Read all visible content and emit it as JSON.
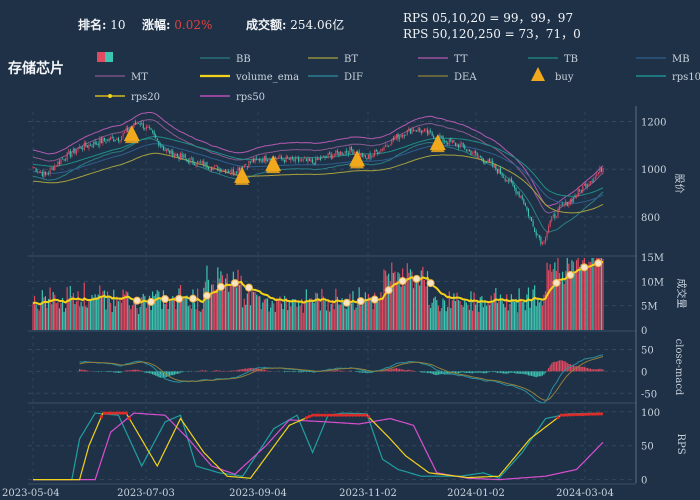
{
  "header": {
    "rank_label": "排名:",
    "rank_value": "10",
    "change_label": "涨幅:",
    "change_value": "0.02%",
    "turnover_label": "成交额:",
    "turnover_value": "254.06亿",
    "rps_line1": "RPS 05,10,20 = 99，99，97",
    "rps_line2": "RPS 50,120,250 = 73，71，0"
  },
  "title": "存储芯片",
  "legend": [
    {
      "label": "",
      "kind": "candle"
    },
    {
      "label": "BB",
      "kind": "line",
      "color": "#2a7e82"
    },
    {
      "label": "BT",
      "kind": "line",
      "color": "#a8a23c"
    },
    {
      "label": "TT",
      "kind": "line",
      "color": "#b35ab0"
    },
    {
      "label": "TB",
      "kind": "line",
      "color": "#1f8f86"
    },
    {
      "label": "MB",
      "kind": "line",
      "color": "#2f5f8f"
    },
    {
      "label": "MT",
      "kind": "line",
      "color": "#8a5a8f"
    },
    {
      "label": "volume_ema",
      "kind": "line",
      "color": "#f3d21b"
    },
    {
      "label": "DIF",
      "kind": "line",
      "color": "#2a8fa0"
    },
    {
      "label": "DEA",
      "kind": "line",
      "color": "#8f7f3a"
    },
    {
      "label": "buy",
      "kind": "triangle",
      "color": "#f0a91c"
    },
    {
      "label": "rps10",
      "kind": "line",
      "color": "#1fa0a0"
    },
    {
      "label": "rps20",
      "kind": "dotline",
      "color": "#f3d21b"
    },
    {
      "label": "rps50",
      "kind": "line",
      "color": "#d94fd0"
    }
  ],
  "chart_data": [
    {
      "type": "candlestick",
      "ylabel": "股价",
      "ylim": [
        640,
        1240
      ],
      "yticks": [
        800,
        1000,
        1200
      ],
      "x_dates": [
        "2023-05-04",
        "2023-07-03",
        "2023-09-04",
        "2023-11-02",
        "2024-01-02",
        "2024-03-04"
      ],
      "close_path": [
        [
          0,
          1010
        ],
        [
          8,
          975
        ],
        [
          18,
          1040
        ],
        [
          30,
          1090
        ],
        [
          45,
          1120
        ],
        [
          55,
          1130
        ],
        [
          68,
          1200
        ],
        [
          75,
          1160
        ],
        [
          85,
          1080
        ],
        [
          100,
          1040
        ],
        [
          115,
          1010
        ],
        [
          128,
          990
        ],
        [
          140,
          1030
        ],
        [
          152,
          1050
        ],
        [
          165,
          1040
        ],
        [
          180,
          1030
        ],
        [
          192,
          1060
        ],
        [
          205,
          1080
        ],
        [
          215,
          1045
        ],
        [
          225,
          1090
        ],
        [
          235,
          1140
        ],
        [
          245,
          1170
        ],
        [
          255,
          1150
        ],
        [
          265,
          1120
        ],
        [
          275,
          1100
        ],
        [
          285,
          1060
        ],
        [
          295,
          1020
        ],
        [
          305,
          960
        ],
        [
          315,
          880
        ],
        [
          322,
          760
        ],
        [
          328,
          690
        ],
        [
          333,
          780
        ],
        [
          340,
          840
        ],
        [
          348,
          880
        ],
        [
          356,
          940
        ],
        [
          362,
          970
        ],
        [
          367,
          1010
        ]
      ],
      "buy_markers_idx": [
        25,
        96,
        116,
        170,
        222
      ],
      "bands": [
        "BB",
        "BT",
        "TT",
        "TB",
        "MB",
        "MT"
      ]
    },
    {
      "type": "bar",
      "ylabel": "成交量",
      "ylim": [
        0,
        15000000
      ],
      "yticks": [
        "0",
        "5M",
        "10M",
        "15M"
      ],
      "volume_ema_series": "volume_ema"
    },
    {
      "type": "bar+line",
      "ylabel": "close-macd",
      "ylim": [
        -70,
        90
      ],
      "yticks": [
        -50,
        0,
        50
      ],
      "series": [
        "DIF",
        "DEA"
      ]
    },
    {
      "type": "line",
      "ylabel": "RPS",
      "ylim": [
        -5,
        110
      ],
      "yticks": [
        0,
        50,
        100
      ],
      "series": [
        "rps10",
        "rps20",
        "rps50"
      ]
    }
  ]
}
